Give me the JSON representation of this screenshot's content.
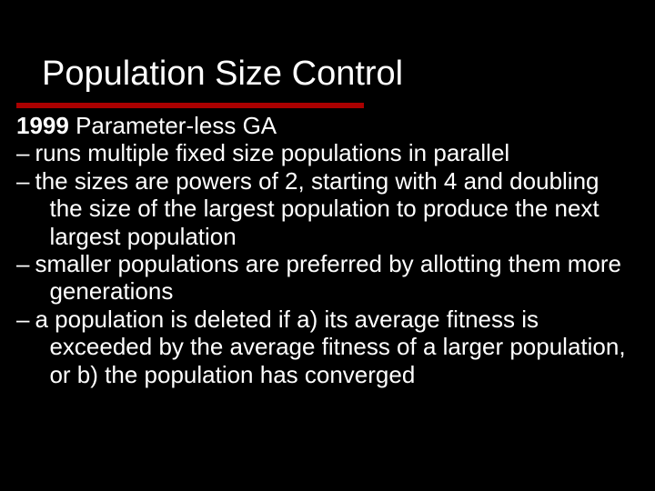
{
  "colors": {
    "background": "#000000",
    "text": "#ffffff",
    "rule": "#aa0000"
  },
  "typography": {
    "title_fontsize": 38,
    "body_fontsize": 26,
    "font_family": "Verdana"
  },
  "slide": {
    "title": "Population Size Control",
    "lead_year": "1999",
    "lead_rest": " Parameter-less GA",
    "bullets": [
      "runs multiple fixed size populations in parallel",
      "the sizes are powers of 2, starting with 4 and doubling the size of the largest population to produce the next largest population",
      "smaller populations are preferred by allotting them more generations",
      "a population is deleted if a) its average fitness is exceeded by the average fitness of a larger population, or b) the population has converged"
    ]
  }
}
